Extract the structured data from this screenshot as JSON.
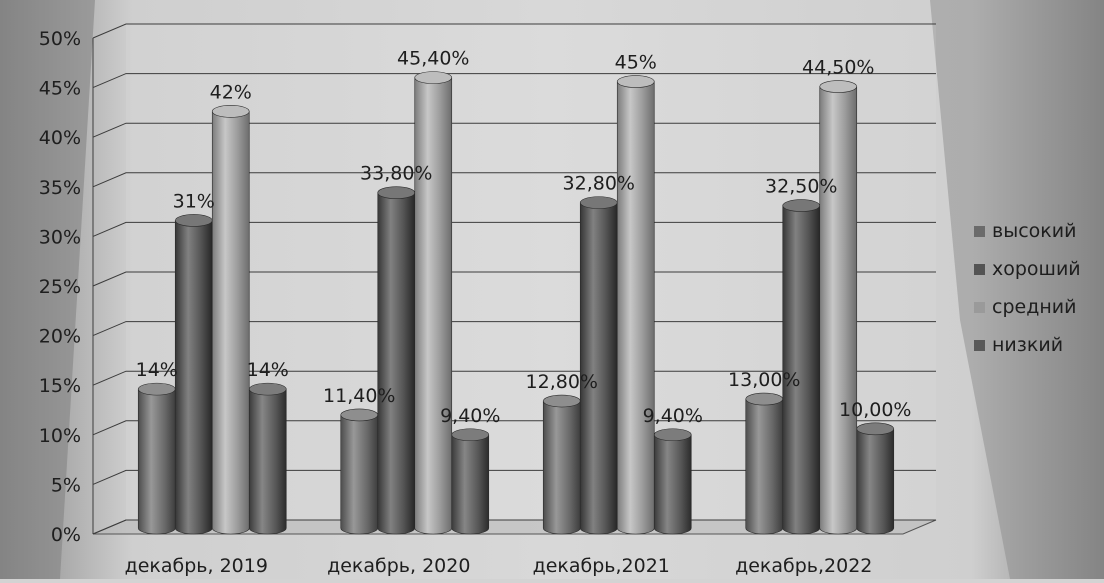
{
  "chart_data": {
    "type": "bar",
    "categories": [
      "декабрь, 2019",
      "декабрь, 2020",
      "декабрь,2021",
      "декабрь,2022"
    ],
    "series": [
      {
        "name": "высокий",
        "values": [
          14,
          11.4,
          12.8,
          13.0
        ],
        "labels": [
          "14%",
          "11,40%",
          "12,80%",
          "13,00%"
        ],
        "color": "#6b6b6b"
      },
      {
        "name": "хороший",
        "values": [
          31,
          33.8,
          32.8,
          32.5
        ],
        "labels": [
          "31%",
          "33,80%",
          "32,80%",
          "32,50%"
        ],
        "color": "#545454"
      },
      {
        "name": "средний",
        "values": [
          42,
          45.4,
          45,
          44.5
        ],
        "labels": [
          "42%",
          "45,40%",
          "45%",
          "44,50%"
        ],
        "color": "#9a9a9a"
      },
      {
        "name": "низкий",
        "values": [
          14,
          9.4,
          9.4,
          10.0
        ],
        "labels": [
          "14%",
          "9,40%",
          "9,40%",
          "10,00%"
        ],
        "color": "#595959"
      }
    ],
    "y_ticks": [
      "0%",
      "5%",
      "10%",
      "15%",
      "20%",
      "25%",
      "30%",
      "35%",
      "40%",
      "45%",
      "50%"
    ],
    "ylim": [
      0,
      50
    ],
    "grid": true,
    "legend_position": "right",
    "style": "3d-cylinder"
  }
}
